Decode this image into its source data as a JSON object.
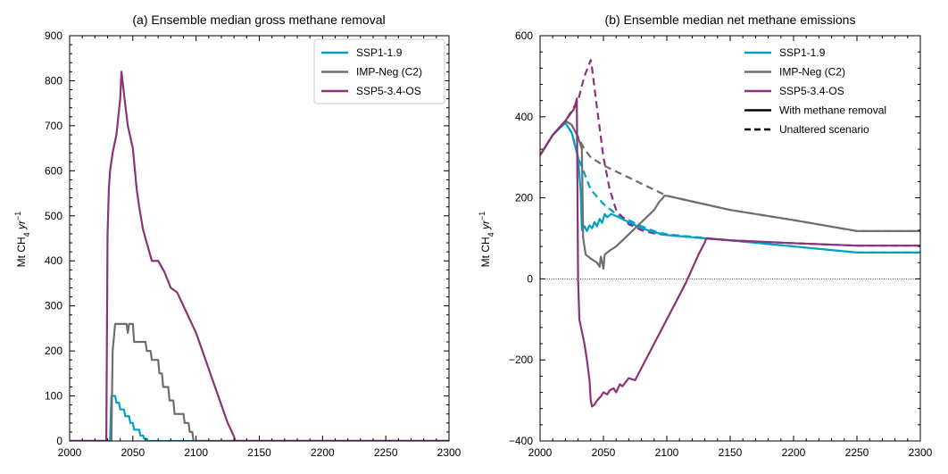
{
  "ylabel_main": "Mt CH",
  "ylabel_sub": "4",
  "ylabel_unit": " yr",
  "ylabel_sup": "−1",
  "chart_data": [
    {
      "type": "line",
      "title": "(a) Ensemble median gross methane removal",
      "xlim": [
        2000,
        2300
      ],
      "ylim": [
        0,
        900
      ],
      "xticks": [
        2000,
        2050,
        2100,
        2150,
        2200,
        2250,
        2300
      ],
      "yticks": [
        0,
        100,
        200,
        300,
        400,
        500,
        600,
        700,
        800,
        900
      ],
      "legend_position": "top-right",
      "legend": [
        {
          "label": "SSP1-1.9",
          "color": "#00a0c8",
          "dash": false
        },
        {
          "label": "IMP-Neg (C2)",
          "color": "#6e6e6e",
          "dash": false
        },
        {
          "label": "SSP5-3.4-OS",
          "color": "#8c3278",
          "dash": false
        }
      ],
      "series": [
        {
          "name": "SSP1-1.9",
          "color": "#00a0c8",
          "dash": false,
          "x": [
            2000,
            2032,
            2033,
            2036,
            2037,
            2039,
            2040,
            2043,
            2044,
            2047,
            2048,
            2050,
            2051,
            2055,
            2056,
            2058,
            2059,
            2061,
            2062,
            2300
          ],
          "y": [
            0,
            0,
            100,
            100,
            85,
            85,
            70,
            70,
            55,
            55,
            40,
            40,
            25,
            25,
            12,
            12,
            5,
            5,
            0,
            0
          ]
        },
        {
          "name": "IMP-Neg (C2)",
          "color": "#6e6e6e",
          "dash": false,
          "x": [
            2000,
            2033,
            2034,
            2036,
            2045,
            2046,
            2047,
            2050,
            2051,
            2060,
            2061,
            2064,
            2065,
            2070,
            2071,
            2073,
            2074,
            2078,
            2079,
            2082,
            2083,
            2090,
            2091,
            2094,
            2095,
            2097,
            2098,
            2300
          ],
          "y": [
            0,
            0,
            200,
            260,
            260,
            240,
            260,
            260,
            220,
            220,
            200,
            200,
            180,
            180,
            150,
            150,
            120,
            120,
            90,
            90,
            60,
            60,
            40,
            40,
            20,
            20,
            0,
            0
          ]
        },
        {
          "name": "SSP5-3.4-OS",
          "color": "#8c3278",
          "dash": false,
          "x": [
            2000,
            2029,
            2030,
            2031,
            2032,
            2034,
            2037,
            2040,
            2041,
            2043,
            2046,
            2050,
            2053,
            2055,
            2058,
            2060,
            2062,
            2065,
            2070,
            2075,
            2080,
            2085,
            2090,
            2095,
            2100,
            2105,
            2110,
            2115,
            2120,
            2125,
            2130,
            2131,
            2300
          ],
          "y": [
            0,
            0,
            460,
            560,
            600,
            640,
            680,
            760,
            820,
            770,
            700,
            650,
            560,
            520,
            470,
            450,
            430,
            400,
            400,
            375,
            340,
            330,
            300,
            270,
            240,
            200,
            160,
            120,
            80,
            40,
            10,
            0,
            0
          ]
        }
      ]
    },
    {
      "type": "line",
      "title": "(b) Ensemble median net methane emissions",
      "xlim": [
        2000,
        2300
      ],
      "ylim": [
        -400,
        600
      ],
      "xticks": [
        2000,
        2050,
        2100,
        2150,
        2200,
        2250,
        2300
      ],
      "yticks": [
        -400,
        -200,
        0,
        200,
        400,
        600
      ],
      "zero_line": true,
      "legend_position": "top-right",
      "legend": [
        {
          "label": "SSP1-1.9",
          "color": "#00a0c8",
          "dash": false
        },
        {
          "label": "IMP-Neg (C2)",
          "color": "#6e6e6e",
          "dash": false
        },
        {
          "label": "SSP5-3.4-OS",
          "color": "#8c3278",
          "dash": false
        },
        {
          "label": "With methane removal",
          "color": "#000000",
          "dash": false
        },
        {
          "label": "Unaltered scenario",
          "color": "#000000",
          "dash": true
        }
      ],
      "series": [
        {
          "name": "SSP1-1.9 unaltered",
          "color": "#00a0c8",
          "dash": true,
          "x": [
            2000,
            2010,
            2020,
            2025,
            2030,
            2040,
            2050,
            2060,
            2070,
            2080,
            2090,
            2100,
            2150,
            2200,
            2250,
            2300
          ],
          "y": [
            305,
            355,
            385,
            360,
            300,
            220,
            185,
            160,
            145,
            130,
            118,
            110,
            95,
            80,
            65,
            65
          ]
        },
        {
          "name": "IMP-Neg (C2) unaltered",
          "color": "#6e6e6e",
          "dash": true,
          "x": [
            2000,
            2010,
            2020,
            2025,
            2030,
            2035,
            2040,
            2050,
            2060,
            2070,
            2080,
            2090,
            2100,
            2150,
            2200,
            2250,
            2300
          ],
          "y": [
            305,
            355,
            390,
            380,
            350,
            320,
            300,
            280,
            265,
            250,
            235,
            220,
            205,
            170,
            145,
            118,
            118
          ]
        },
        {
          "name": "SSP5-3.4-OS unaltered",
          "color": "#8c3278",
          "dash": true,
          "x": [
            2000,
            2010,
            2020,
            2030,
            2035,
            2040,
            2041,
            2045,
            2050,
            2055,
            2060,
            2070,
            2080,
            2090,
            2100,
            2130,
            2150,
            2200,
            2250,
            2300
          ],
          "y": [
            305,
            355,
            390,
            440,
            500,
            540,
            520,
            420,
            300,
            220,
            170,
            135,
            120,
            112,
            108,
            100,
            95,
            88,
            82,
            82
          ]
        },
        {
          "name": "SSP1-1.9",
          "color": "#00a0c8",
          "dash": false,
          "x": [
            2000,
            2010,
            2020,
            2025,
            2030,
            2032,
            2033,
            2035,
            2037,
            2039,
            2041,
            2043,
            2045,
            2047,
            2049,
            2051,
            2053,
            2056,
            2060,
            2070,
            2080,
            2090,
            2100,
            2150,
            2200,
            2250,
            2300
          ],
          "y": [
            305,
            355,
            385,
            360,
            300,
            220,
            120,
            130,
            118,
            132,
            125,
            140,
            130,
            148,
            138,
            160,
            152,
            160,
            155,
            140,
            125,
            115,
            108,
            95,
            80,
            65,
            65
          ]
        },
        {
          "name": "IMP-Neg (C2)",
          "color": "#6e6e6e",
          "dash": false,
          "x": [
            2000,
            2010,
            2020,
            2025,
            2030,
            2033,
            2034,
            2036,
            2040,
            2045,
            2047,
            2048,
            2050,
            2051,
            2055,
            2060,
            2065,
            2070,
            2075,
            2080,
            2085,
            2090,
            2094,
            2097,
            2098,
            2100,
            2150,
            2200,
            2250,
            2300
          ],
          "y": [
            305,
            355,
            390,
            380,
            350,
            320,
            100,
            60,
            50,
            40,
            30,
            55,
            25,
            60,
            70,
            80,
            95,
            110,
            125,
            140,
            155,
            170,
            190,
            200,
            205,
            205,
            170,
            145,
            118,
            118
          ]
        },
        {
          "name": "SSP5-3.4-OS",
          "color": "#8c3278",
          "dash": false,
          "x": [
            2000,
            2010,
            2020,
            2027,
            2029,
            2030,
            2031,
            2033,
            2035,
            2037,
            2039,
            2040,
            2041,
            2043,
            2045,
            2048,
            2050,
            2053,
            2055,
            2058,
            2060,
            2063,
            2065,
            2070,
            2075,
            2080,
            2085,
            2090,
            2095,
            2100,
            2105,
            2110,
            2115,
            2120,
            2125,
            2130,
            2131,
            2150,
            2200,
            2250,
            2300
          ],
          "y": [
            305,
            355,
            390,
            420,
            445,
            0,
            -100,
            -130,
            -160,
            -200,
            -250,
            -300,
            -315,
            -310,
            -300,
            -290,
            -280,
            -285,
            -275,
            -270,
            -280,
            -260,
            -265,
            -245,
            -250,
            -220,
            -190,
            -160,
            -130,
            -100,
            -70,
            -40,
            -10,
            25,
            60,
            90,
            100,
            95,
            88,
            82,
            82
          ]
        }
      ]
    }
  ]
}
